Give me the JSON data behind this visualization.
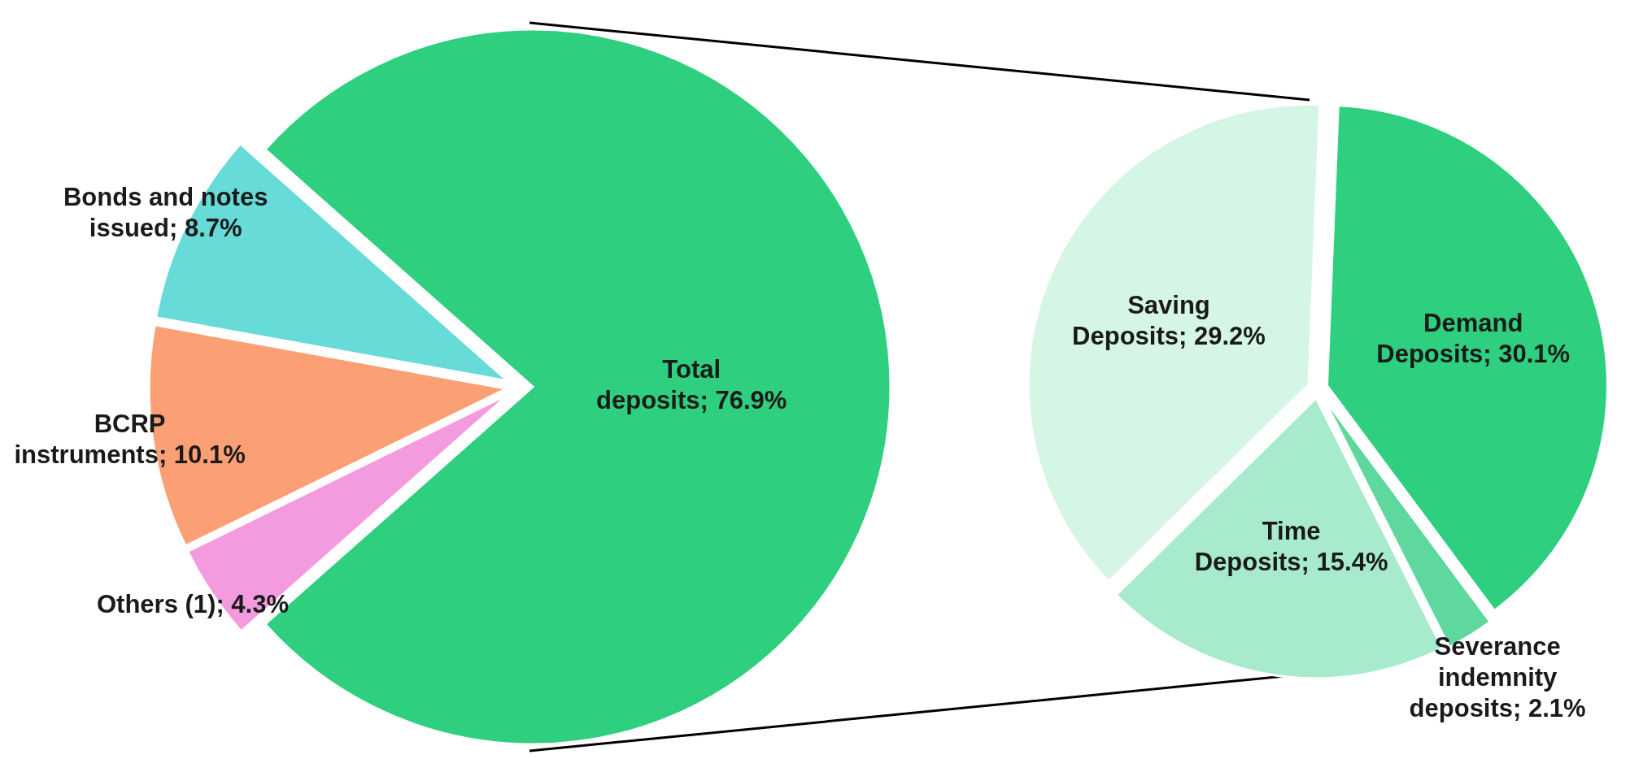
{
  "chart_data": [
    {
      "type": "pie",
      "categories": [
        "Total deposits",
        "Others (1)",
        "BCRP instruments",
        "Bonds and notes issued"
      ],
      "values": [
        76.9,
        4.3,
        10.1,
        8.7
      ],
      "value_labels": [
        "76.9%",
        "4.3%",
        "10.1%",
        "8.7%"
      ],
      "colors": [
        "#2ecf7f",
        "#f49be0",
        "#fb9f74",
        "#66dbd8"
      ]
    },
    {
      "type": "pie",
      "categories": [
        "Demand Deposits",
        "Severance indemnity deposits",
        "Time Deposits",
        "Saving Deposits"
      ],
      "values": [
        30.1,
        2.1,
        15.4,
        29.2
      ],
      "value_labels": [
        "30.1%",
        "2.1%",
        "15.4%",
        "29.2%"
      ],
      "colors": [
        "#2ecf7f",
        "#5ed89d",
        "#a8ebcc",
        "#d5f5e5"
      ]
    }
  ]
}
